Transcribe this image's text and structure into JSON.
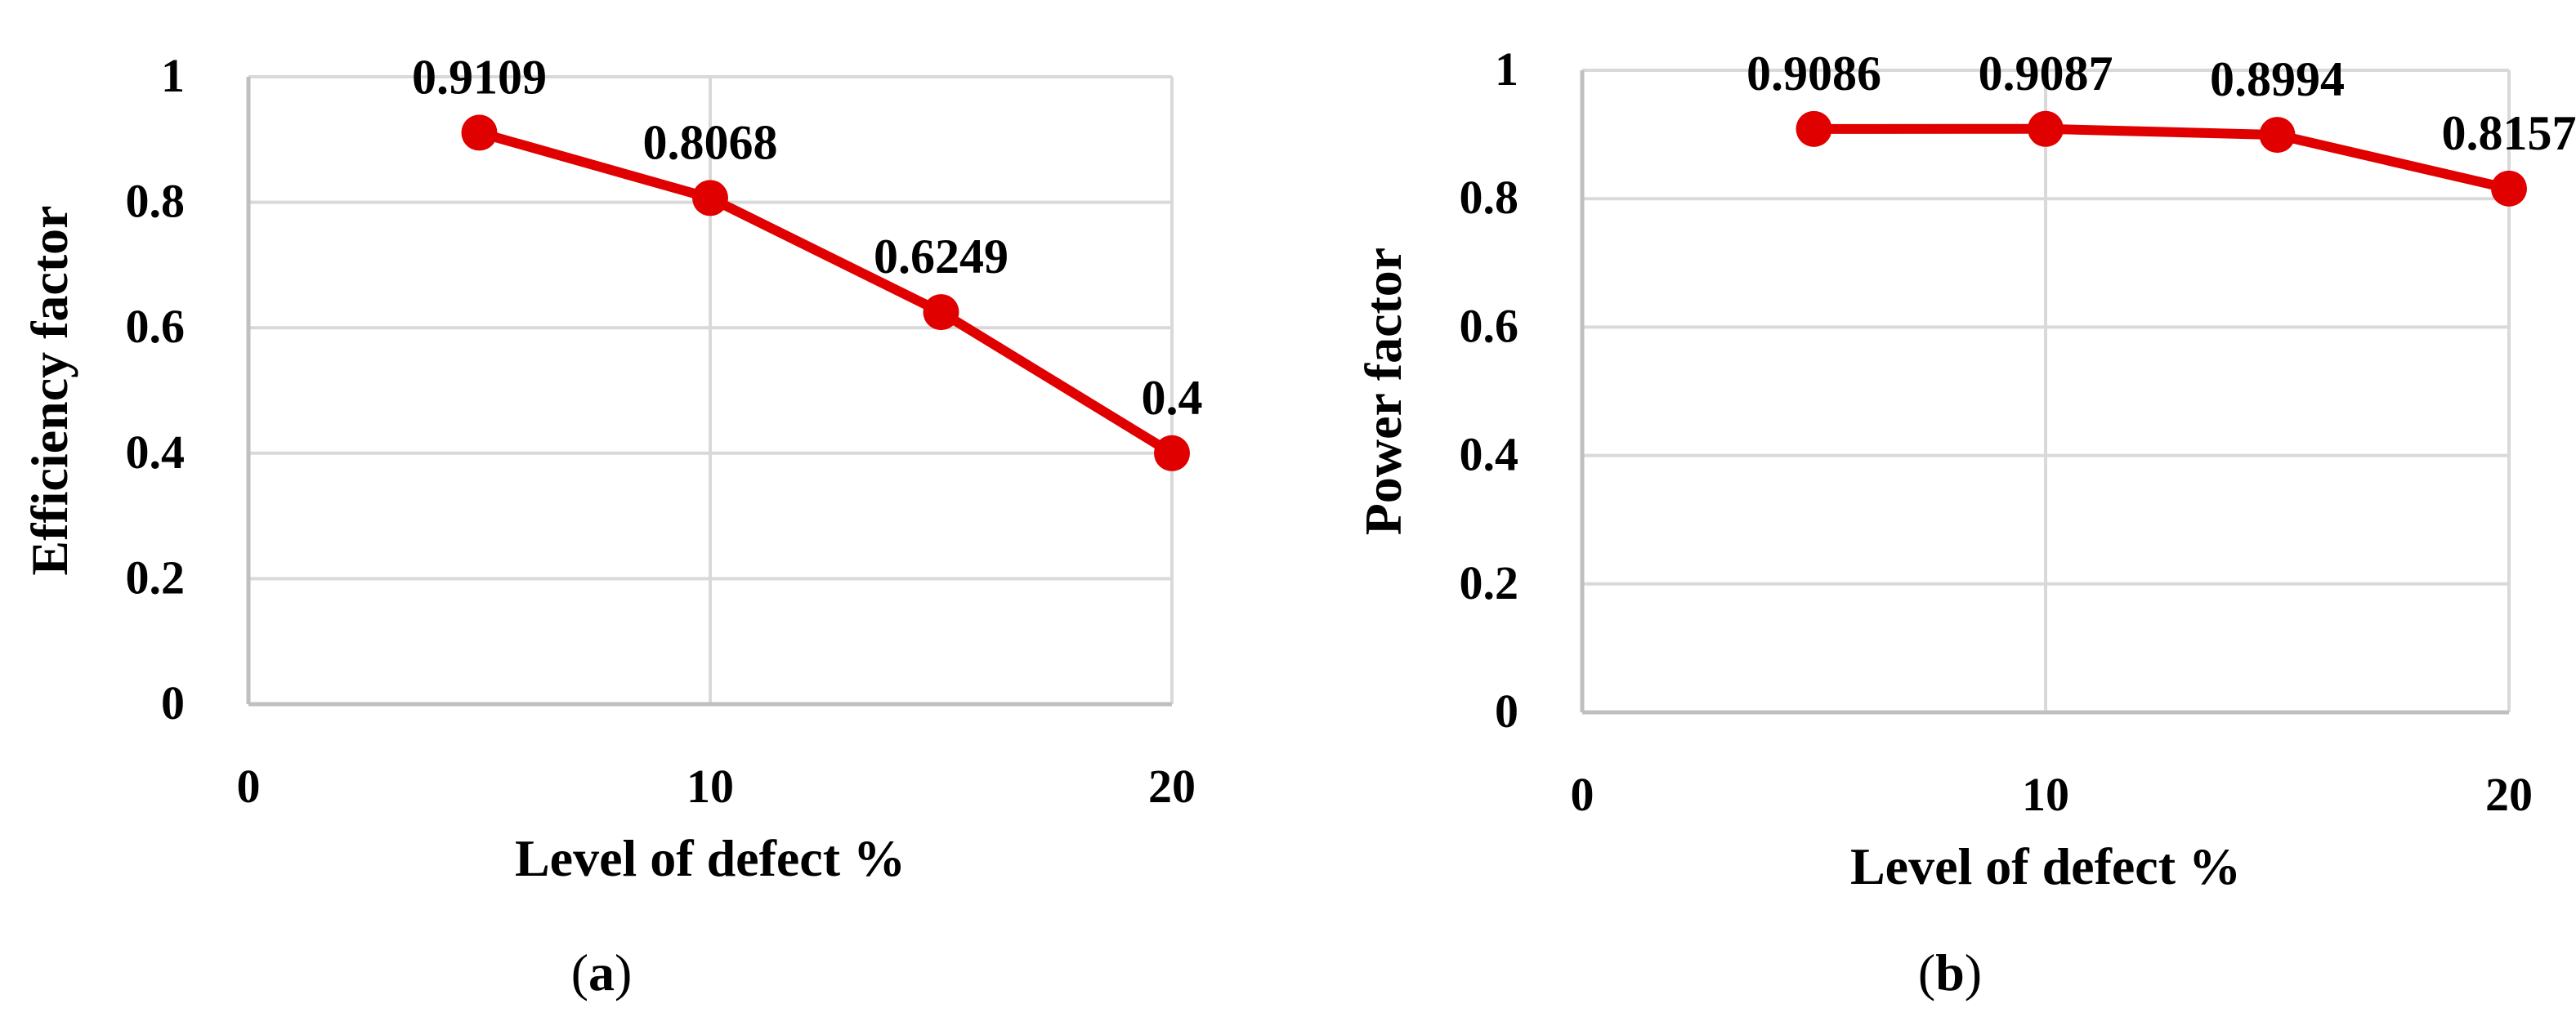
{
  "colors": {
    "series": "#e00000",
    "grid": "#d9d9d9",
    "axis": "#bfbfbf",
    "text": "#000000"
  },
  "chart_data": [
    {
      "type": "line",
      "xlabel": "Level of defect %",
      "ylabel": "Efficiency factor",
      "caption": "(a)",
      "caption_letter": "a",
      "xlim": [
        0,
        20
      ],
      "ylim": [
        0,
        1
      ],
      "x_ticks": [
        "0",
        "10",
        "20"
      ],
      "y_ticks": [
        "0",
        "0.2",
        "0.4",
        "0.6",
        "0.8",
        "1"
      ],
      "grid": true,
      "marker": "circle",
      "x": [
        5,
        10,
        15,
        20
      ],
      "values": [
        0.9109,
        0.8068,
        0.6249,
        0.4
      ],
      "data_labels": [
        "0.9109",
        "0.8068",
        "0.6249",
        "0.4"
      ]
    },
    {
      "type": "line",
      "xlabel": "Level of defect %",
      "ylabel": "Power factor",
      "caption": "(b)",
      "caption_letter": "b",
      "xlim": [
        0,
        20
      ],
      "ylim": [
        0,
        1
      ],
      "x_ticks": [
        "0",
        "10",
        "20"
      ],
      "y_ticks": [
        "0",
        "0.2",
        "0.4",
        "0.6",
        "0.8",
        "1"
      ],
      "grid": true,
      "marker": "circle",
      "x": [
        5,
        10,
        15,
        20
      ],
      "values": [
        0.9086,
        0.9087,
        0.8994,
        0.8157
      ],
      "data_labels": [
        "0.9086",
        "0.9087",
        "0.8994",
        "0.8157"
      ]
    }
  ]
}
